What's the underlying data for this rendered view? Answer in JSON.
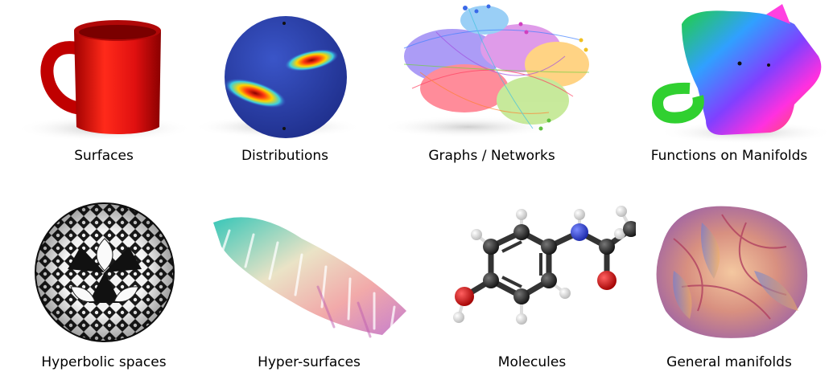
{
  "figure": {
    "items": [
      {
        "label": "Surfaces",
        "icon": "mug-surface-icon"
      },
      {
        "label": "Distributions",
        "icon": "sphere-distribution-icon"
      },
      {
        "label": "Graphs / Networks",
        "icon": "network-graph-icon"
      },
      {
        "label": "Functions on Manifolds",
        "icon": "cat-manifold-function-icon"
      },
      {
        "label": "Hyperbolic spaces",
        "icon": "hyperbolic-disk-icon"
      },
      {
        "label": "Hyper-surfaces",
        "icon": "hyper-surface-icon"
      },
      {
        "label": "Molecules",
        "icon": "molecule-icon"
      },
      {
        "label": "General manifolds",
        "icon": "calabi-yau-manifold-icon"
      }
    ],
    "colors": {
      "mug": "#e01010",
      "sphere": "#2a3fa8",
      "hot": "#d62020",
      "carbon": "#2b2b2b",
      "oxygen": "#d40000",
      "nitrogen": "#2a3fd0",
      "hydrogen": "#f2f2f2"
    }
  }
}
